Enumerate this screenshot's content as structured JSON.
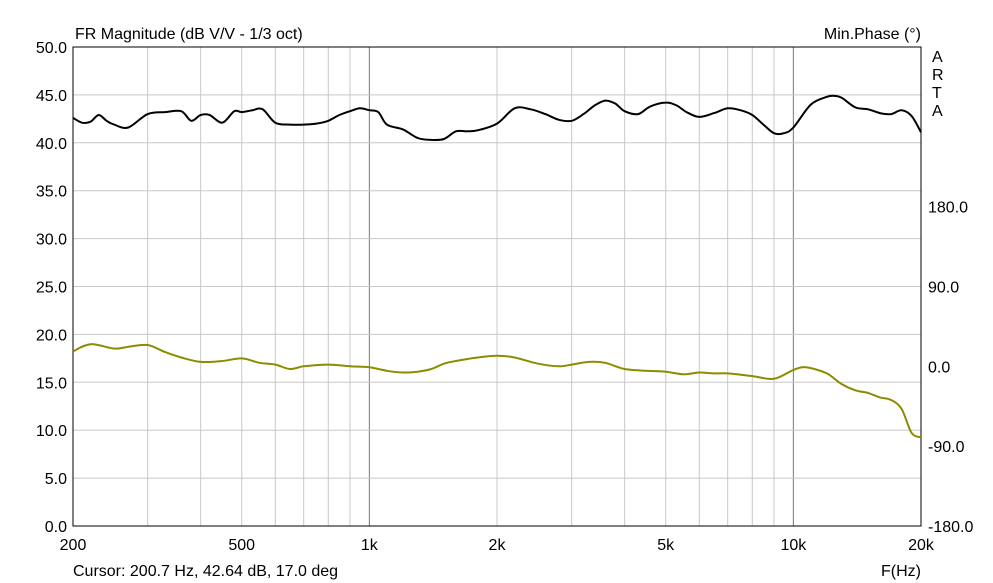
{
  "chart_data": {
    "type": "line",
    "title": "FR Magnitude (dB V/V - 1/3 oct)",
    "right_title": "Min.Phase (°)",
    "xlabel": "F(Hz)",
    "brand": "ARTA",
    "cursor_text": "Cursor: 200.7 Hz, 42.64 dB, 17.0 deg",
    "x_scale": "log",
    "xlim": [
      200,
      20000
    ],
    "ylim": [
      0,
      50
    ],
    "y2lim": [
      -180,
      360
    ],
    "x_ticks": [
      {
        "v": 200,
        "label": "200"
      },
      {
        "v": 500,
        "label": "500"
      },
      {
        "v": 1000,
        "label": "1k"
      },
      {
        "v": 2000,
        "label": "2k"
      },
      {
        "v": 5000,
        "label": "5k"
      },
      {
        "v": 10000,
        "label": "10k"
      },
      {
        "v": 20000,
        "label": "20k"
      }
    ],
    "y_ticks": [
      {
        "v": 0,
        "label": "0.0"
      },
      {
        "v": 5,
        "label": "5.0"
      },
      {
        "v": 10,
        "label": "10.0"
      },
      {
        "v": 15,
        "label": "15.0"
      },
      {
        "v": 20,
        "label": "20.0"
      },
      {
        "v": 25,
        "label": "25.0"
      },
      {
        "v": 30,
        "label": "30.0"
      },
      {
        "v": 35,
        "label": "35.0"
      },
      {
        "v": 40,
        "label": "40.0"
      },
      {
        "v": 45,
        "label": "45.0"
      },
      {
        "v": 50,
        "label": "50.0"
      }
    ],
    "y2_ticks": [
      {
        "v": -180,
        "label": "-180.0"
      },
      {
        "v": -90,
        "label": "-90.0"
      },
      {
        "v": 0,
        "label": "0.0"
      },
      {
        "v": 90,
        "label": "90.0"
      },
      {
        "v": 180,
        "label": "180.0"
      }
    ],
    "grid": true,
    "colors": {
      "magnitude": "#000000",
      "phase": "#8c8c00",
      "grid": "#c8c8c8",
      "grid_major": "#7a7a7a"
    },
    "series": [
      {
        "axis": "left",
        "x": [
          200,
          210,
          220,
          230,
          240,
          250,
          270,
          300,
          330,
          360,
          380,
          400,
          420,
          450,
          480,
          500,
          530,
          560,
          600,
          650,
          700,
          750,
          800,
          850,
          900,
          950,
          1000,
          1050,
          1100,
          1200,
          1300,
          1400,
          1500,
          1600,
          1700,
          1800,
          2000,
          2200,
          2400,
          2600,
          2800,
          3000,
          3200,
          3400,
          3600,
          3800,
          4000,
          4300,
          4600,
          5000,
          5300,
          5600,
          6000,
          6500,
          7000,
          7500,
          8000,
          8500,
          9000,
          9500,
          10000,
          11000,
          12000,
          12500,
          13000,
          14000,
          15000,
          16000,
          17000,
          18000,
          19000,
          20000
        ],
        "y": [
          42.6,
          42.1,
          42.2,
          42.9,
          42.3,
          41.9,
          41.6,
          43.0,
          43.2,
          43.3,
          42.3,
          42.9,
          42.9,
          42.1,
          43.3,
          43.2,
          43.4,
          43.5,
          42.1,
          41.9,
          41.9,
          42.0,
          42.3,
          42.9,
          43.3,
          43.6,
          43.4,
          43.2,
          41.9,
          41.4,
          40.5,
          40.3,
          40.4,
          41.2,
          41.2,
          41.3,
          42.0,
          43.6,
          43.5,
          43.0,
          42.4,
          42.3,
          43.0,
          43.9,
          44.4,
          44.1,
          43.3,
          43.0,
          43.8,
          44.2,
          43.9,
          43.2,
          42.7,
          43.1,
          43.6,
          43.4,
          42.9,
          41.9,
          41.0,
          41.0,
          41.6,
          44.0,
          44.8,
          44.9,
          44.7,
          43.7,
          43.5,
          43.1,
          43.0,
          43.4,
          42.8,
          41.1
        ]
      },
      {
        "axis": "right",
        "x": [
          200,
          220,
          250,
          270,
          300,
          330,
          360,
          400,
          450,
          500,
          550,
          600,
          650,
          700,
          800,
          900,
          1000,
          1100,
          1200,
          1300,
          1400,
          1500,
          1600,
          1800,
          2000,
          2200,
          2500,
          2800,
          3000,
          3300,
          3600,
          4000,
          4500,
          5000,
          5500,
          6000,
          6500,
          7000,
          8000,
          9000,
          10000,
          10500,
          11000,
          12000,
          13000,
          14000,
          15000,
          16000,
          17000,
          18000,
          19000,
          20000
        ],
        "y": [
          17,
          25,
          20,
          22,
          24,
          16,
          10,
          5,
          6,
          9,
          4,
          2,
          -3,
          0,
          2,
          0,
          -1,
          -5,
          -7,
          -6,
          -3,
          3,
          6,
          10,
          12,
          10,
          3,
          0,
          2,
          5,
          4,
          -3,
          -5,
          -6,
          -9,
          -7,
          -8,
          -8,
          -11,
          -14,
          -4,
          -1,
          -2,
          -8,
          -20,
          -27,
          -30,
          -35,
          -38,
          -48,
          -75,
          -80
        ]
      }
    ]
  }
}
